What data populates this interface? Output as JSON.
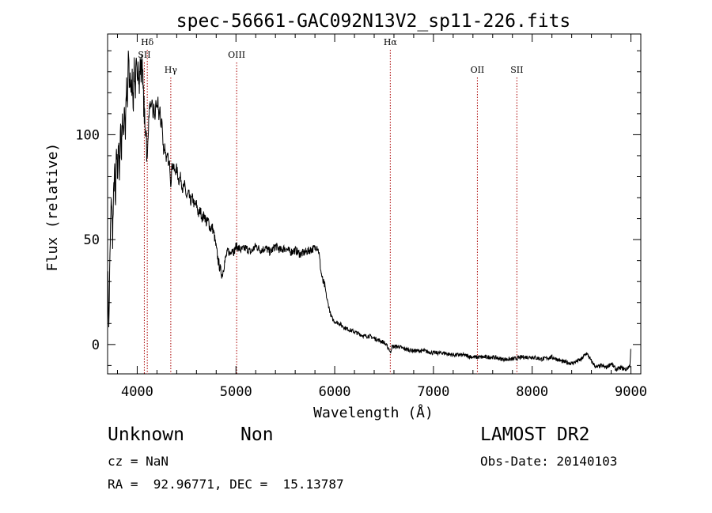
{
  "chart_data": {
    "type": "line",
    "title": "spec-56661-GAC092N13V2_sp11-226.fits",
    "xlabel": "Wavelength (Å)",
    "ylabel": "Flux (relative)",
    "xlim": [
      3700,
      9100
    ],
    "ylim": [
      -14,
      148
    ],
    "xticks": [
      4000,
      5000,
      6000,
      7000,
      8000,
      9000
    ],
    "yticks": [
      0,
      50,
      100
    ],
    "grid": false,
    "line_color": "#000000",
    "marker_color": "#aa0000",
    "series": [
      {
        "values": [
          [
            3700,
            20
          ],
          [
            3705,
            35
          ],
          [
            3712,
            5
          ],
          [
            3720,
            30
          ],
          [
            3730,
            55
          ],
          [
            3740,
            72
          ],
          [
            3750,
            50
          ],
          [
            3760,
            68
          ],
          [
            3770,
            85
          ],
          [
            3780,
            62
          ],
          [
            3790,
            95
          ],
          [
            3800,
            80
          ],
          [
            3810,
            100
          ],
          [
            3820,
            75
          ],
          [
            3830,
            108
          ],
          [
            3840,
            90
          ],
          [
            3850,
            112
          ],
          [
            3860,
            95
          ],
          [
            3870,
            118
          ],
          [
            3880,
            100
          ],
          [
            3890,
            125
          ],
          [
            3900,
            108
          ],
          [
            3910,
            140
          ],
          [
            3920,
            122
          ],
          [
            3930,
            130
          ],
          [
            3940,
            118
          ],
          [
            3950,
            128
          ],
          [
            3960,
            115
          ],
          [
            3970,
            135
          ],
          [
            3980,
            120
          ],
          [
            3990,
            132
          ],
          [
            4000,
            124
          ],
          [
            4010,
            140
          ],
          [
            4020,
            122
          ],
          [
            4030,
            134
          ],
          [
            4040,
            128
          ],
          [
            4050,
            138
          ],
          [
            4060,
            120
          ],
          [
            4070,
            112
          ],
          [
            4080,
            100
          ],
          [
            4090,
            106
          ],
          [
            4100,
            85
          ],
          [
            4110,
            100
          ],
          [
            4120,
            110
          ],
          [
            4130,
            115
          ],
          [
            4140,
            110
          ],
          [
            4150,
            118
          ],
          [
            4160,
            108
          ],
          [
            4170,
            114
          ],
          [
            4180,
            106
          ],
          [
            4190,
            118
          ],
          [
            4200,
            110
          ],
          [
            4210,
            116
          ],
          [
            4220,
            108
          ],
          [
            4230,
            112
          ],
          [
            4240,
            104
          ],
          [
            4250,
            108
          ],
          [
            4260,
            96
          ],
          [
            4270,
            92
          ],
          [
            4280,
            95
          ],
          [
            4290,
            90
          ],
          [
            4300,
            88
          ],
          [
            4310,
            90
          ],
          [
            4320,
            85
          ],
          [
            4330,
            86
          ],
          [
            4340,
            76
          ],
          [
            4350,
            84
          ],
          [
            4360,
            86
          ],
          [
            4380,
            82
          ],
          [
            4400,
            84
          ],
          [
            4420,
            78
          ],
          [
            4440,
            80
          ],
          [
            4460,
            74
          ],
          [
            4480,
            76
          ],
          [
            4500,
            70
          ],
          [
            4520,
            72
          ],
          [
            4540,
            68
          ],
          [
            4560,
            70
          ],
          [
            4580,
            66
          ],
          [
            4600,
            67
          ],
          [
            4620,
            62
          ],
          [
            4640,
            64
          ],
          [
            4660,
            60
          ],
          [
            4680,
            62
          ],
          [
            4700,
            58
          ],
          [
            4720,
            59
          ],
          [
            4740,
            55
          ],
          [
            4760,
            56
          ],
          [
            4780,
            52
          ],
          [
            4800,
            46
          ],
          [
            4820,
            40
          ],
          [
            4840,
            36
          ],
          [
            4860,
            33
          ],
          [
            4880,
            38
          ],
          [
            4900,
            42
          ],
          [
            4920,
            45
          ],
          [
            4940,
            43
          ],
          [
            4960,
            46
          ],
          [
            4980,
            44
          ],
          [
            5000,
            47
          ],
          [
            5050,
            45
          ],
          [
            5100,
            46
          ],
          [
            5150,
            44
          ],
          [
            5200,
            47
          ],
          [
            5250,
            45
          ],
          [
            5300,
            46
          ],
          [
            5350,
            44
          ],
          [
            5400,
            47
          ],
          [
            5450,
            45
          ],
          [
            5500,
            46
          ],
          [
            5550,
            44
          ],
          [
            5600,
            45
          ],
          [
            5650,
            43
          ],
          [
            5700,
            44
          ],
          [
            5750,
            45
          ],
          [
            5800,
            46
          ],
          [
            5820,
            47
          ],
          [
            5840,
            44
          ],
          [
            5860,
            35
          ],
          [
            5880,
            30
          ],
          [
            5900,
            28
          ],
          [
            5920,
            22
          ],
          [
            5940,
            18
          ],
          [
            5960,
            14
          ],
          [
            5980,
            12
          ],
          [
            6000,
            11
          ],
          [
            6050,
            10
          ],
          [
            6100,
            8
          ],
          [
            6150,
            7
          ],
          [
            6200,
            6
          ],
          [
            6250,
            5
          ],
          [
            6300,
            4
          ],
          [
            6350,
            4
          ],
          [
            6400,
            3
          ],
          [
            6450,
            2
          ],
          [
            6500,
            1
          ],
          [
            6550,
            -2
          ],
          [
            6563,
            -4
          ],
          [
            6580,
            -1
          ],
          [
            6650,
            -1
          ],
          [
            6700,
            -2
          ],
          [
            6800,
            -3
          ],
          [
            6900,
            -3
          ],
          [
            7000,
            -4
          ],
          [
            7100,
            -4
          ],
          [
            7200,
            -5
          ],
          [
            7300,
            -5
          ],
          [
            7400,
            -6
          ],
          [
            7450,
            -6
          ],
          [
            7500,
            -6
          ],
          [
            7600,
            -6
          ],
          [
            7700,
            -7
          ],
          [
            7800,
            -7
          ],
          [
            7900,
            -6
          ],
          [
            8000,
            -6
          ],
          [
            8100,
            -7
          ],
          [
            8200,
            -6
          ],
          [
            8300,
            -8
          ],
          [
            8400,
            -9
          ],
          [
            8500,
            -7
          ],
          [
            8550,
            -4
          ],
          [
            8600,
            -8
          ],
          [
            8650,
            -11
          ],
          [
            8700,
            -10
          ],
          [
            8750,
            -11
          ],
          [
            8800,
            -9
          ],
          [
            8850,
            -12
          ],
          [
            8900,
            -11
          ],
          [
            8950,
            -12
          ],
          [
            8990,
            -10
          ],
          [
            9000,
            0
          ]
        ]
      }
    ],
    "annotations": [
      {
        "label": "Hδ",
        "x": 4102,
        "level": 2
      },
      {
        "label": "SII",
        "x": 4072,
        "level": 1
      },
      {
        "label": "Hγ",
        "x": 4340,
        "level": 0
      },
      {
        "label": "OIII",
        "x": 5007,
        "level": 1
      },
      {
        "label": "Hα",
        "x": 6563,
        "level": 2
      },
      {
        "label": "OII",
        "x": 7445,
        "level": 0
      },
      {
        "label": "SII",
        "x": 7845,
        "level": 0
      }
    ]
  },
  "info": {
    "class": "Unknown",
    "subclass": "Non",
    "survey": "LAMOST DR2",
    "cz": "cz = NaN",
    "obs_date": "Obs-Date: 20140103",
    "coords": "RA =  92.96771, DEC =  15.13787"
  }
}
